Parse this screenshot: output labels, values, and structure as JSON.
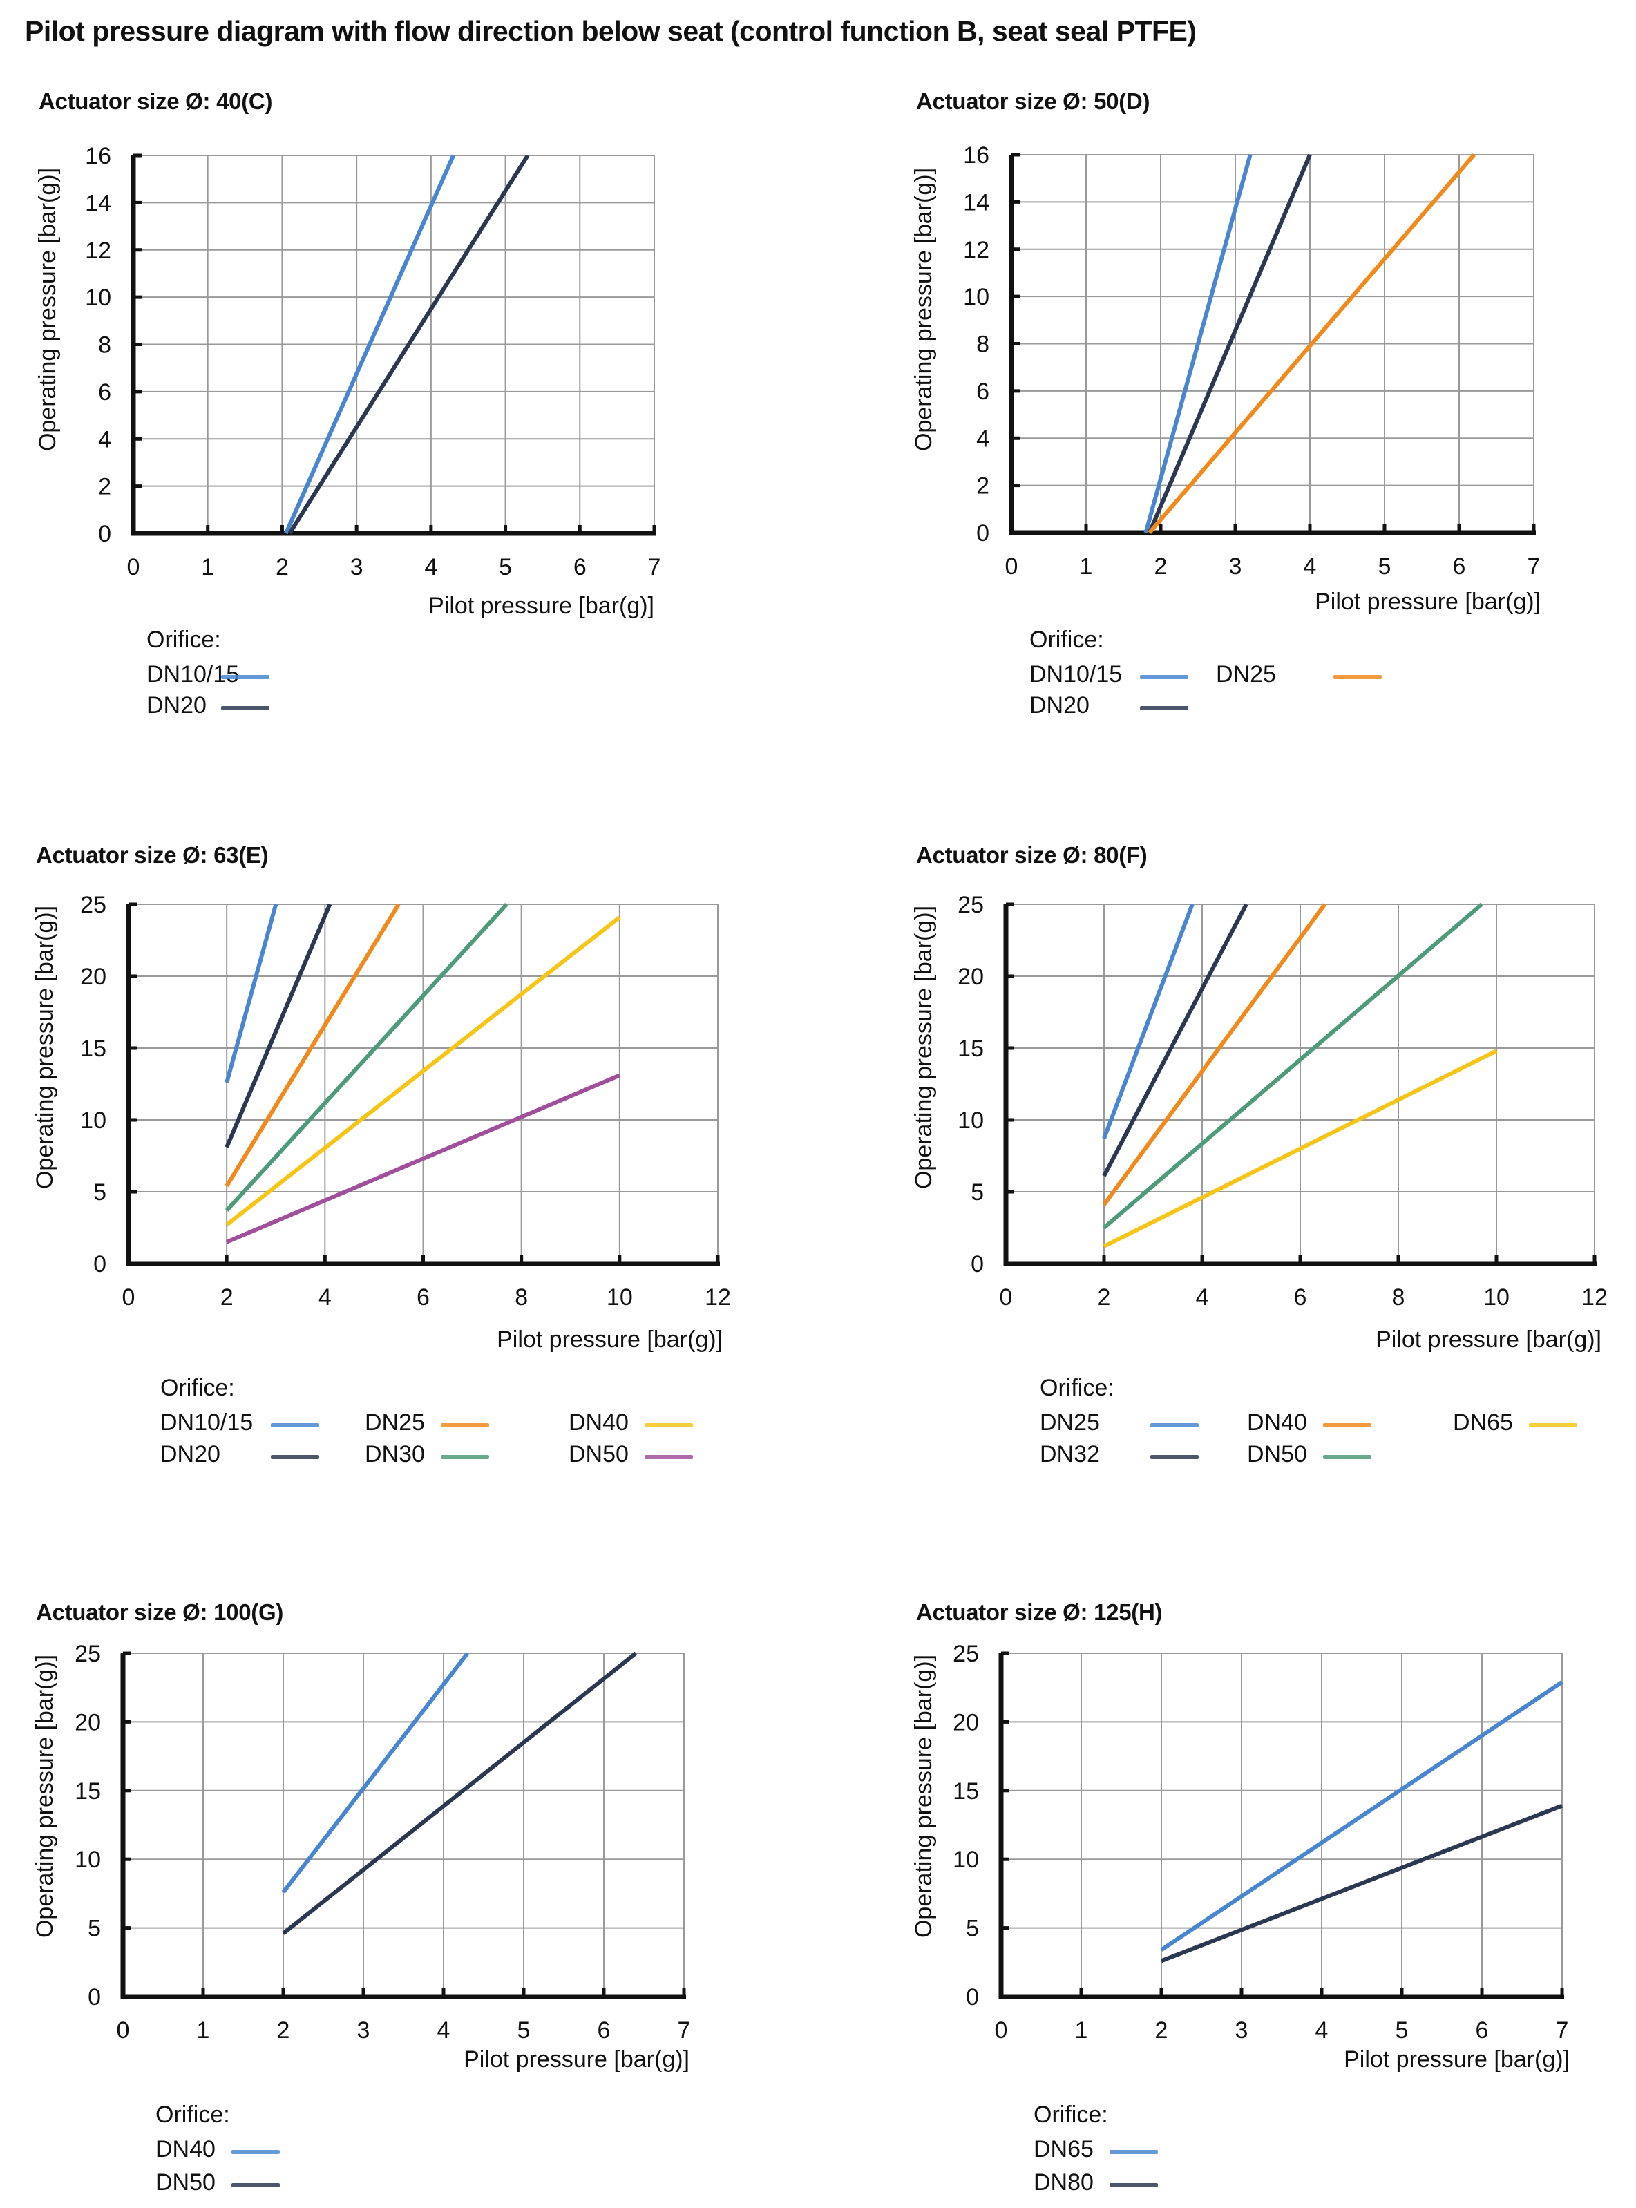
{
  "page_title": "Pilot pressure diagram with flow direction below seat (control function B, seat seal PTFE)",
  "colors": {
    "blue": "#4a86d0",
    "navy": "#2b3850",
    "orange": "#f08a1c",
    "green": "#4f9a7a",
    "yellow": "#f5c518",
    "purple": "#a0509a",
    "grid": "#9a9a9a",
    "axis": "#111111"
  },
  "chart_data": [
    {
      "id": "c40",
      "type": "line",
      "title": "Actuator size Ø: 40(C)",
      "xlabel": "Pilot pressure [bar(g)]",
      "ylabel": "Operating pressure [bar(g)]",
      "xlim": [
        0,
        7
      ],
      "ylim": [
        0,
        16
      ],
      "xticks": [
        0,
        1,
        2,
        3,
        4,
        5,
        6,
        7
      ],
      "yticks": [
        0,
        2,
        4,
        6,
        8,
        10,
        12,
        14,
        16
      ],
      "grid": true,
      "legend_title": "Orifice:",
      "legend_position": "bottom-left",
      "series": [
        {
          "name": "DN10/15",
          "color": "blue",
          "x": [
            2.05,
            4.3
          ],
          "y": [
            0,
            16
          ]
        },
        {
          "name": "DN20",
          "color": "navy",
          "x": [
            2.1,
            5.3
          ],
          "y": [
            0,
            16
          ]
        }
      ]
    },
    {
      "id": "c50",
      "type": "line",
      "title": "Actuator size Ø: 50(D)",
      "xlabel": "Pilot pressure [bar(g)]",
      "ylabel": "Operating pressure [bar(g)]",
      "xlim": [
        0,
        7
      ],
      "ylim": [
        0,
        16
      ],
      "xticks": [
        0,
        1,
        2,
        3,
        4,
        5,
        6,
        7
      ],
      "yticks": [
        0,
        2,
        4,
        6,
        8,
        10,
        12,
        14,
        16
      ],
      "grid": true,
      "legend_title": "Orifice:",
      "legend_position": "bottom-left",
      "series": [
        {
          "name": "DN10/15",
          "color": "blue",
          "x": [
            1.8,
            3.2
          ],
          "y": [
            0,
            16
          ]
        },
        {
          "name": "DN20",
          "color": "navy",
          "x": [
            1.85,
            4.0
          ],
          "y": [
            0,
            16
          ]
        },
        {
          "name": "DN25",
          "color": "orange",
          "x": [
            1.85,
            6.2
          ],
          "y": [
            0,
            16
          ]
        }
      ]
    },
    {
      "id": "c63",
      "type": "line",
      "title": "Actuator size Ø: 63(E)",
      "xlabel": "Pilot pressure [bar(g)]",
      "ylabel": "Operating pressure [bar(g)]",
      "xlim": [
        0,
        12
      ],
      "ylim": [
        0,
        25
      ],
      "xticks": [
        0,
        2,
        4,
        6,
        8,
        10,
        12
      ],
      "yticks": [
        0,
        5,
        10,
        15,
        20,
        25
      ],
      "grid": true,
      "legend_title": "Orifice:",
      "legend_position": "bottom-left",
      "series": [
        {
          "name": "DN10/15",
          "color": "blue",
          "x": [
            2,
            3.0
          ],
          "y": [
            12.6,
            25
          ]
        },
        {
          "name": "DN20",
          "color": "navy",
          "x": [
            2,
            4.1
          ],
          "y": [
            8.1,
            25
          ]
        },
        {
          "name": "DN25",
          "color": "orange",
          "x": [
            2,
            5.5
          ],
          "y": [
            5.4,
            25
          ]
        },
        {
          "name": "DN30",
          "color": "green",
          "x": [
            2,
            7.7
          ],
          "y": [
            3.7,
            25
          ]
        },
        {
          "name": "DN40",
          "color": "yellow",
          "x": [
            2,
            10
          ],
          "y": [
            2.7,
            24.1
          ]
        },
        {
          "name": "DN50",
          "color": "purple",
          "x": [
            2,
            10
          ],
          "y": [
            1.5,
            13.1
          ]
        }
      ]
    },
    {
      "id": "c80",
      "type": "line",
      "title": "Actuator size Ø: 80(F)",
      "xlabel": "Pilot pressure [bar(g)]",
      "ylabel": "Operating pressure [bar(g)]",
      "xlim": [
        0,
        12
      ],
      "ylim": [
        0,
        25
      ],
      "xticks": [
        0,
        2,
        4,
        6,
        8,
        10,
        12
      ],
      "yticks": [
        0,
        5,
        10,
        15,
        20,
        25
      ],
      "grid": true,
      "legend_title": "Orifice:",
      "legend_position": "bottom-left",
      "series": [
        {
          "name": "DN25",
          "color": "blue",
          "x": [
            2,
            3.8
          ],
          "y": [
            8.7,
            25
          ]
        },
        {
          "name": "DN32",
          "color": "navy",
          "x": [
            2,
            4.9
          ],
          "y": [
            6.1,
            25
          ]
        },
        {
          "name": "DN40",
          "color": "orange",
          "x": [
            2,
            6.5
          ],
          "y": [
            4.1,
            25
          ]
        },
        {
          "name": "DN50",
          "color": "green",
          "x": [
            2,
            9.7
          ],
          "y": [
            2.5,
            25
          ]
        },
        {
          "name": "DN65",
          "color": "yellow",
          "x": [
            2,
            10
          ],
          "y": [
            1.2,
            14.8
          ]
        }
      ]
    },
    {
      "id": "c100",
      "type": "line",
      "title": "Actuator size Ø: 100(G)",
      "xlabel": "Pilot pressure [bar(g)]",
      "ylabel": "Operating pressure [bar(g)]",
      "xlim": [
        0,
        7
      ],
      "ylim": [
        0,
        25
      ],
      "xticks": [
        0,
        1,
        2,
        3,
        4,
        5,
        6,
        7
      ],
      "yticks": [
        0,
        5,
        10,
        15,
        20,
        25
      ],
      "grid": true,
      "legend_title": "Orifice:",
      "legend_position": "bottom-left",
      "series": [
        {
          "name": "DN40",
          "color": "blue",
          "x": [
            2,
            4.3
          ],
          "y": [
            7.6,
            25
          ]
        },
        {
          "name": "DN50",
          "color": "navy",
          "x": [
            2,
            6.4
          ],
          "y": [
            4.6,
            25
          ]
        }
      ]
    },
    {
      "id": "c125",
      "type": "line",
      "title": "Actuator size Ø: 125(H)",
      "xlabel": "Pilot pressure [bar(g)]",
      "ylabel": "Operating pressure [bar(g)]",
      "xlim": [
        0,
        7
      ],
      "ylim": [
        0,
        25
      ],
      "xticks": [
        0,
        1,
        2,
        3,
        4,
        5,
        6,
        7
      ],
      "yticks": [
        0,
        5,
        10,
        15,
        20,
        25
      ],
      "grid": true,
      "legend_title": "Orifice:",
      "legend_position": "bottom-left",
      "series": [
        {
          "name": "DN65",
          "color": "blue",
          "x": [
            2,
            7
          ],
          "y": [
            3.4,
            22.9
          ]
        },
        {
          "name": "DN80",
          "color": "navy",
          "x": [
            2,
            7
          ],
          "y": [
            2.6,
            13.9
          ]
        }
      ]
    }
  ]
}
